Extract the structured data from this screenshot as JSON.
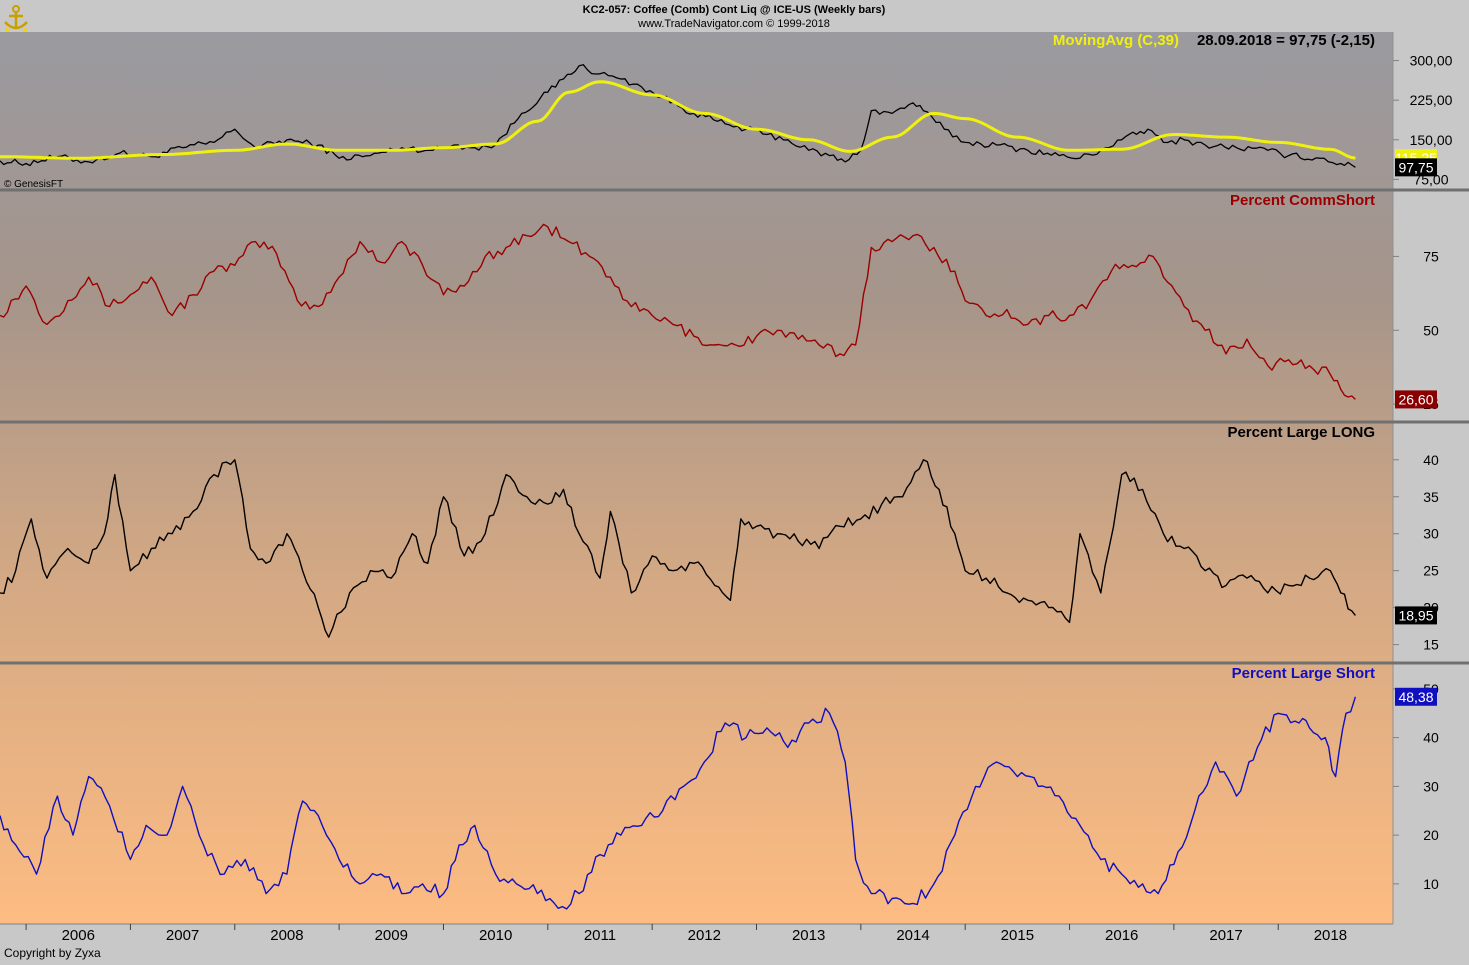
{
  "header": {
    "title": "KC2-057:  Coffee (Comb) Cont Liq @ ICE-US  (Weekly bars)",
    "subtitle": "www.TradeNavigator.com © 1999-2018",
    "ma_label": "MovingAvg (C,39)",
    "ma_reading": "28.09.2018 = 97,75 (-2,15)",
    "credit": "© GenesisFT",
    "footer": "Copyright by Zyxa",
    "icon": "anchor-logo-icon"
  },
  "colors": {
    "price": "#000000",
    "moving_avg": "#f0f010",
    "comm_short": "#9a0000",
    "large_long": "#000000",
    "large_short": "#1010c0",
    "separator": "#707070"
  },
  "x_axis": {
    "labels": [
      "2006",
      "2007",
      "2008",
      "2009",
      "2010",
      "2011",
      "2012",
      "2013",
      "2014",
      "2015",
      "2016",
      "2017",
      "2018"
    ],
    "range": [
      2005.75,
      2019.1
    ]
  },
  "chart_data": [
    {
      "type": "line",
      "title": "KC2-057:  Coffee (Comb) Cont Liq @ ICE-US  (Weekly bars)",
      "yticks": [
        "300,00",
        "225,00",
        "150,00",
        "75,00"
      ],
      "ylim": [
        70,
        320
      ],
      "last_price_label": "97,75",
      "ma_value_label": "115,25",
      "series": [
        {
          "name": "Price",
          "x": [
            2005.75,
            2006.0,
            2006.3,
            2006.6,
            2006.9,
            2007.2,
            2007.5,
            2007.8,
            2008.0,
            2008.2,
            2008.5,
            2008.8,
            2009.0,
            2009.3,
            2009.6,
            2009.9,
            2010.1,
            2010.3,
            2010.5,
            2010.75,
            2011.0,
            2011.15,
            2011.3,
            2011.5,
            2011.7,
            2011.9,
            2012.1,
            2012.4,
            2012.7,
            2012.9,
            2013.1,
            2013.3,
            2013.5,
            2013.7,
            2013.85,
            2014.0,
            2014.1,
            2014.3,
            2014.5,
            2014.6,
            2014.8,
            2015.0,
            2015.3,
            2015.6,
            2015.9,
            2016.1,
            2016.3,
            2016.5,
            2016.75,
            2016.9,
            2017.1,
            2017.3,
            2017.6,
            2017.9,
            2018.1,
            2018.4,
            2018.6,
            2018.74
          ],
          "values": [
            110,
            105,
            118,
            108,
            125,
            118,
            135,
            145,
            170,
            135,
            150,
            140,
            115,
            120,
            135,
            130,
            140,
            135,
            140,
            200,
            240,
            265,
            290,
            275,
            265,
            250,
            230,
            200,
            180,
            170,
            160,
            150,
            130,
            120,
            108,
            130,
            205,
            200,
            220,
            205,
            170,
            145,
            140,
            130,
            120,
            115,
            130,
            150,
            170,
            145,
            150,
            140,
            135,
            130,
            120,
            115,
            105,
            97.75
          ]
        },
        {
          "name": "MovingAvg (C,39)",
          "x": [
            2005.75,
            2006.5,
            2007.3,
            2008.0,
            2008.5,
            2009.0,
            2009.5,
            2010.0,
            2010.5,
            2010.9,
            2011.2,
            2011.5,
            2012.0,
            2012.5,
            2013.0,
            2013.5,
            2013.9,
            2014.3,
            2014.7,
            2015.0,
            2015.5,
            2016.0,
            2016.5,
            2017.0,
            2017.5,
            2018.0,
            2018.5,
            2018.74
          ],
          "values": [
            118,
            115,
            122,
            130,
            142,
            130,
            130,
            135,
            142,
            185,
            240,
            260,
            235,
            200,
            170,
            150,
            128,
            155,
            200,
            190,
            155,
            130,
            132,
            160,
            155,
            145,
            132,
            115.25
          ]
        }
      ]
    },
    {
      "type": "line",
      "title": "Percent CommShort",
      "yticks": [
        "75",
        "50",
        "25"
      ],
      "ylim": [
        22,
        88
      ],
      "last_value_label": "26,60",
      "series": [
        {
          "name": "Percent CommShort",
          "x": [
            2005.75,
            2006.0,
            2006.2,
            2006.4,
            2006.6,
            2006.8,
            2007.0,
            2007.2,
            2007.4,
            2007.6,
            2007.8,
            2008.0,
            2008.2,
            2008.4,
            2008.6,
            2008.8,
            2009.0,
            2009.2,
            2009.4,
            2009.6,
            2009.8,
            2010.0,
            2010.2,
            2010.4,
            2010.6,
            2010.8,
            2011.0,
            2011.2,
            2011.4,
            2011.6,
            2011.8,
            2012.0,
            2012.2,
            2012.4,
            2012.6,
            2012.8,
            2013.0,
            2013.2,
            2013.4,
            2013.6,
            2013.8,
            2013.95,
            2014.1,
            2014.3,
            2014.5,
            2014.7,
            2014.9,
            2015.0,
            2015.2,
            2015.4,
            2015.6,
            2015.8,
            2016.0,
            2016.2,
            2016.4,
            2016.6,
            2016.8,
            2016.9,
            2017.1,
            2017.3,
            2017.5,
            2017.7,
            2017.9,
            2018.1,
            2018.3,
            2018.5,
            2018.6,
            2018.74
          ],
          "values": [
            55,
            65,
            52,
            60,
            68,
            58,
            62,
            68,
            55,
            62,
            70,
            72,
            80,
            76,
            60,
            58,
            68,
            80,
            73,
            80,
            72,
            62,
            65,
            75,
            78,
            82,
            85,
            80,
            75,
            68,
            58,
            55,
            52,
            48,
            45,
            45,
            48,
            50,
            47,
            45,
            42,
            45,
            78,
            80,
            82,
            78,
            70,
            60,
            55,
            57,
            52,
            55,
            55,
            60,
            70,
            72,
            75,
            68,
            58,
            50,
            42,
            47,
            38,
            40,
            38,
            35,
            30,
            26.6
          ]
        }
      ]
    },
    {
      "type": "line",
      "title": "Percent Large LONG",
      "yticks": [
        "40",
        "35",
        "30",
        "25",
        "20",
        "15"
      ],
      "ylim": [
        14,
        42
      ],
      "last_value_label": "18,95",
      "series": [
        {
          "name": "Percent Large LONG",
          "x": [
            2005.75,
            2005.9,
            2006.05,
            2006.2,
            2006.4,
            2006.6,
            2006.75,
            2006.85,
            2007.0,
            2007.2,
            2007.4,
            2007.6,
            2007.8,
            2008.0,
            2008.15,
            2008.3,
            2008.5,
            2008.65,
            2008.8,
            2008.9,
            2009.1,
            2009.3,
            2009.5,
            2009.7,
            2009.85,
            2010.0,
            2010.2,
            2010.4,
            2010.6,
            2010.8,
            2011.0,
            2011.15,
            2011.3,
            2011.5,
            2011.6,
            2011.8,
            2012.0,
            2012.2,
            2012.4,
            2012.6,
            2012.75,
            2012.85,
            2013.0,
            2013.2,
            2013.4,
            2013.6,
            2013.8,
            2014.0,
            2014.2,
            2014.4,
            2014.6,
            2014.75,
            2014.9,
            2015.0,
            2015.2,
            2015.4,
            2015.6,
            2015.8,
            2016.0,
            2016.1,
            2016.3,
            2016.5,
            2016.7,
            2016.9,
            2017.1,
            2017.3,
            2017.5,
            2017.7,
            2017.9,
            2018.1,
            2018.3,
            2018.5,
            2018.6,
            2018.74
          ],
          "values": [
            22,
            25,
            32,
            24,
            28,
            26,
            30,
            38,
            25,
            28,
            30,
            33,
            38,
            40,
            28,
            26,
            30,
            25,
            20,
            16,
            22,
            25,
            24,
            30,
            26,
            35,
            27,
            30,
            38,
            35,
            34,
            36,
            30,
            24,
            33,
            22,
            27,
            25,
            26,
            23,
            21,
            32,
            31,
            30,
            29,
            28,
            31,
            32,
            34,
            35,
            40,
            36,
            30,
            25,
            24,
            22,
            21,
            20,
            18,
            30,
            22,
            38,
            36,
            30,
            28,
            25,
            23,
            24,
            22,
            23,
            24,
            25,
            22,
            18.95
          ]
        }
      ]
    },
    {
      "type": "line",
      "title": "Percent Large Short",
      "yticks": [
        "50",
        "40",
        "30",
        "20",
        "10"
      ],
      "ylim": [
        3,
        51
      ],
      "last_value_label": "48,38",
      "series": [
        {
          "name": "Percent Large Short",
          "x": [
            2005.75,
            2005.9,
            2006.1,
            2006.3,
            2006.45,
            2006.6,
            2006.8,
            2007.0,
            2007.15,
            2007.35,
            2007.5,
            2007.7,
            2007.9,
            2008.1,
            2008.3,
            2008.5,
            2008.65,
            2008.8,
            2009.0,
            2009.2,
            2009.4,
            2009.6,
            2009.8,
            2010.0,
            2010.15,
            2010.3,
            2010.5,
            2010.7,
            2010.9,
            2011.1,
            2011.3,
            2011.5,
            2011.7,
            2011.9,
            2012.1,
            2012.3,
            2012.5,
            2012.7,
            2012.9,
            2013.1,
            2013.3,
            2013.5,
            2013.7,
            2013.85,
            2013.95,
            2014.1,
            2014.3,
            2014.5,
            2014.7,
            2014.9,
            2015.1,
            2015.3,
            2015.5,
            2015.7,
            2015.9,
            2016.1,
            2016.3,
            2016.5,
            2016.7,
            2016.85,
            2017.0,
            2017.2,
            2017.4,
            2017.6,
            2017.8,
            2018.0,
            2018.2,
            2018.3,
            2018.45,
            2018.55,
            2018.65,
            2018.74
          ],
          "values": [
            24,
            18,
            12,
            28,
            20,
            32,
            26,
            15,
            22,
            20,
            30,
            18,
            12,
            15,
            8,
            12,
            27,
            24,
            15,
            10,
            12,
            8,
            10,
            8,
            18,
            22,
            12,
            10,
            8,
            5,
            8,
            16,
            20,
            22,
            25,
            30,
            35,
            43,
            40,
            42,
            38,
            43,
            45,
            35,
            15,
            8,
            7,
            6,
            10,
            20,
            30,
            35,
            32,
            30,
            28,
            22,
            15,
            12,
            10,
            8,
            14,
            25,
            35,
            28,
            38,
            45,
            43,
            42,
            40,
            32,
            45,
            48.38
          ]
        }
      ]
    }
  ]
}
